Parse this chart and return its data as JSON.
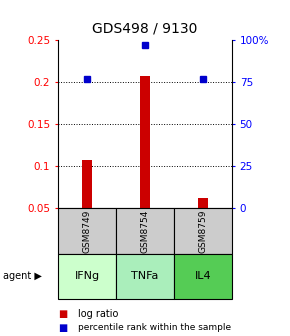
{
  "title": "GDS498 / 9130",
  "samples": [
    "GSM8749",
    "GSM8754",
    "GSM8759"
  ],
  "agents": [
    "IFNg",
    "TNFa",
    "IL4"
  ],
  "log_ratios": [
    0.107,
    0.208,
    0.062
  ],
  "percentile_ranks_pct": [
    77,
    97,
    77
  ],
  "left_ylim": [
    0.05,
    0.25
  ],
  "left_yticks": [
    0.05,
    0.1,
    0.15,
    0.2,
    0.25
  ],
  "right_ylim": [
    0,
    100
  ],
  "right_yticks": [
    0,
    25,
    50,
    75,
    100
  ],
  "right_yticklabels": [
    "0",
    "25",
    "50",
    "75",
    "100%"
  ],
  "bar_color": "#cc0000",
  "dot_color": "#0000cc",
  "agent_colors": [
    "#ccffcc",
    "#aaeebb",
    "#55cc55"
  ],
  "sample_box_color": "#cccccc",
  "title_fontsize": 10,
  "tick_fontsize": 7.5,
  "label_fontsize": 8
}
